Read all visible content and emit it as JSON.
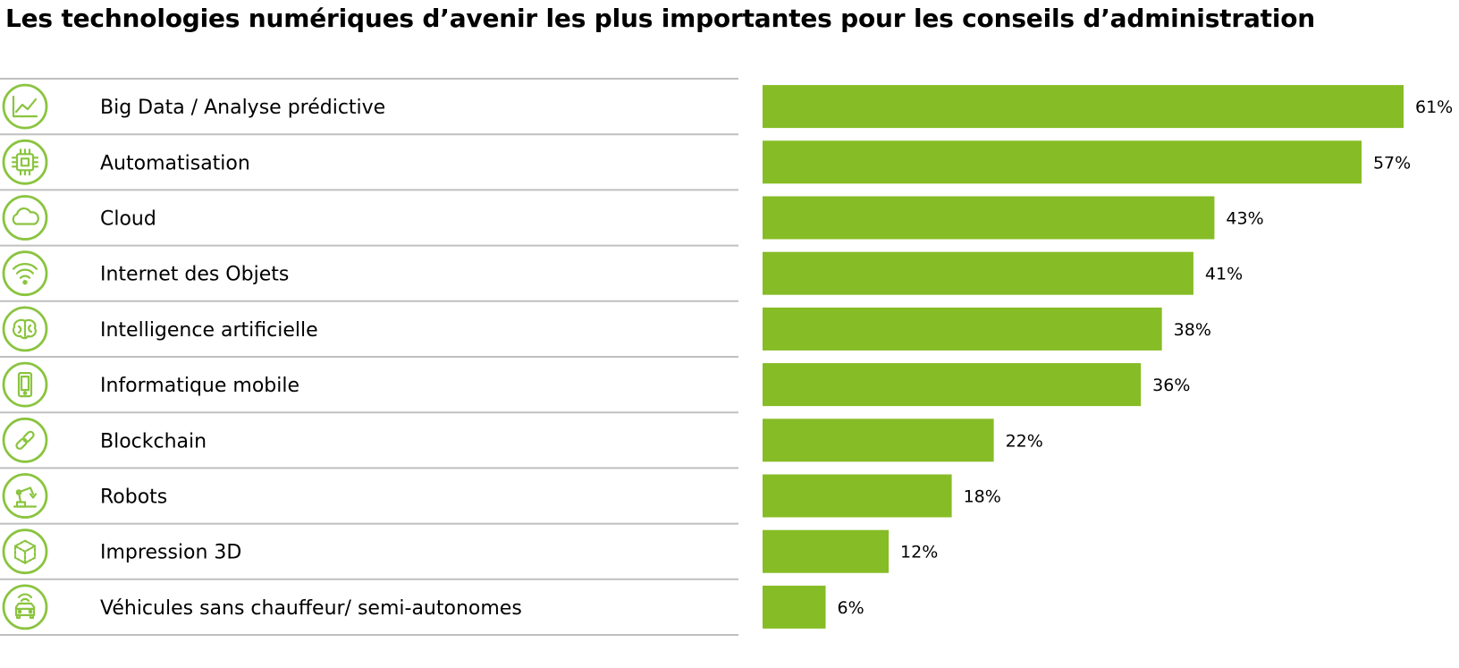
{
  "title": "Les technologies numériques d’avenir les plus importantes pour les conseils d’administration",
  "colors": {
    "bar": "#86bc25",
    "icon": "#8ac43f",
    "divider": "#bfbfbf"
  },
  "chart_data": {
    "type": "bar",
    "orientation": "horizontal",
    "title": "Les technologies numériques d’avenir les plus importantes pour les conseils d’administration",
    "xlim": [
      0,
      61
    ],
    "unit": "%",
    "grid": false,
    "categories": [
      "Big Data / Analyse prédictive",
      " Automatisation",
      "Cloud",
      "Internet des Objets",
      "Intelligence artificielle",
      "Informatique mobile",
      "Blockchain",
      "Robots",
      "Impression 3D",
      "Véhicules sans chauffeur/ semi-autonomes"
    ],
    "values": [
      61,
      57,
      43,
      41,
      38,
      36,
      22,
      18,
      12,
      6
    ],
    "value_labels": [
      "61%",
      "57%",
      "43%",
      "41%",
      "38%",
      "36%",
      "22%",
      "18%",
      "12%",
      "6%"
    ],
    "icons": [
      "line-chart-icon",
      "chip-icon",
      "cloud-icon",
      "wifi-icon",
      "brain-icon",
      "smartphone-icon",
      "chain-link-icon",
      "robot-arm-icon",
      "cube-icon",
      "autonomous-car-icon"
    ]
  }
}
